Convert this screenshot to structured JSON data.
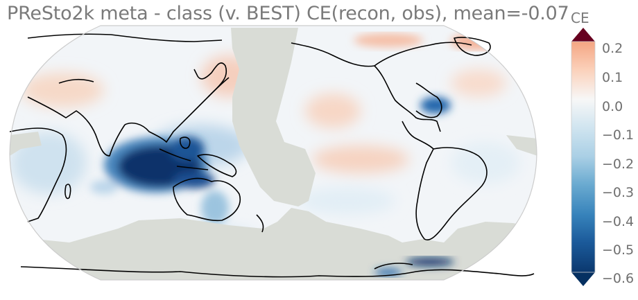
{
  "title": "PReSto2k meta - class (v. BEST) CE(recon, obs), mean=-0.07",
  "colorbar": {
    "label": "CE",
    "min": -0.6,
    "max": 0.2,
    "extend": "both",
    "colormap": "RdBu_r",
    "ticks": [
      "0.2",
      "0.1",
      "0.0",
      "−0.1",
      "−0.2",
      "−0.3",
      "−0.4",
      "−0.5",
      "−0.6"
    ],
    "over_color": "#67001f",
    "under_color": "#053061"
  },
  "map": {
    "projection": "Robinson",
    "central_longitude": 180,
    "mask_color": "#d9dcd6",
    "coastline_color": "#000000"
  },
  "colors": {
    "dark_blue": "#08306b",
    "mid_blue": "#2166ac",
    "light_blue": "#92c5de",
    "pale_blue": "#d1e5f0",
    "pale_red": "#fddbc7",
    "light_red": "#f4a582"
  }
}
